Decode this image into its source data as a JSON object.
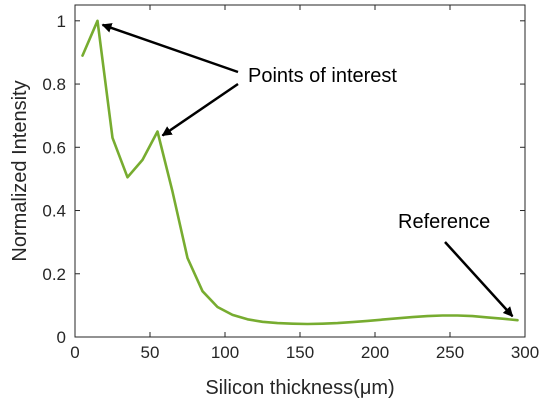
{
  "chart_data": {
    "type": "line",
    "title": "",
    "xlabel": "Silicon thickness(μm)",
    "ylabel": "Normalized Intensity",
    "xlim": [
      0,
      300
    ],
    "ylim": [
      0,
      1.05
    ],
    "xticks": [
      0,
      50,
      100,
      150,
      200,
      250,
      300
    ],
    "yticks": [
      0,
      0.2,
      0.4,
      0.6,
      0.8,
      1
    ],
    "xtick_labels": [
      "0",
      "50",
      "100",
      "150",
      "200",
      "250",
      "300"
    ],
    "ytick_labels": [
      "0",
      "0.2",
      "0.4",
      "0.6",
      "0.8",
      "1"
    ],
    "grid": false,
    "series": [
      {
        "color": "#77ac30",
        "x": [
          5,
          15,
          25,
          35,
          45,
          55,
          65,
          75,
          85,
          95,
          105,
          115,
          125,
          135,
          145,
          155,
          165,
          175,
          185,
          195,
          205,
          215,
          225,
          235,
          245,
          255,
          265,
          275,
          285,
          295
        ],
        "y": [
          0.89,
          1.0,
          0.63,
          0.505,
          0.56,
          0.65,
          0.46,
          0.25,
          0.145,
          0.095,
          0.07,
          0.056,
          0.048,
          0.044,
          0.042,
          0.041,
          0.042,
          0.044,
          0.047,
          0.051,
          0.055,
          0.059,
          0.063,
          0.066,
          0.068,
          0.068,
          0.066,
          0.062,
          0.058,
          0.053
        ]
      }
    ],
    "annotations": [
      {
        "text": "Points of interest",
        "points_to": [
          [
            15,
            1.0
          ],
          [
            55,
            0.65
          ]
        ]
      },
      {
        "text": "Reference",
        "points_to": [
          [
            295,
            0.053
          ]
        ]
      }
    ]
  }
}
